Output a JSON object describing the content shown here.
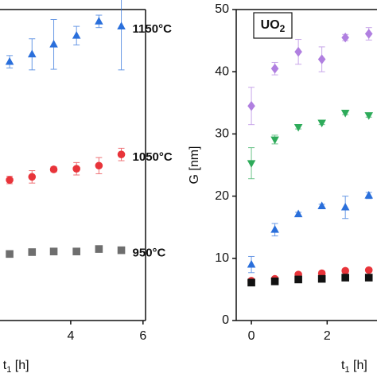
{
  "chart_data": [
    {
      "type": "scatter",
      "x": [
        2.31,
        2.93,
        3.53,
        4.16,
        4.78,
        5.4
      ],
      "xlim": [
        2,
        6.07
      ],
      "xticks": [
        4,
        6
      ],
      "ylim": [
        0,
        50
      ],
      "xlabel": {
        "text": "t",
        "sub": "1",
        "unit": " [h]"
      },
      "series": [
        {
          "name": "1150°C",
          "color": "#2a6fdb",
          "marker": "triangle",
          "values": [
            41.6,
            42.8,
            44.4,
            45.8,
            48.1,
            47.3
          ],
          "errors": [
            1,
            2.5,
            4,
            1.5,
            1,
            7
          ]
        },
        {
          "name": "1050°C",
          "color": "#e8343a",
          "marker": "circle",
          "values": [
            22.6,
            23.1,
            24.3,
            24.4,
            24.9,
            26.7
          ],
          "errors": [
            0.6,
            1,
            0.4,
            1,
            1.3,
            1
          ]
        },
        {
          "name": "950°C",
          "color": "#6e6e6e",
          "marker": "square",
          "values": [
            10.7,
            11.0,
            11.1,
            11.1,
            11.5,
            11.3
          ],
          "errors": [
            0,
            0,
            0,
            0,
            0,
            0
          ]
        }
      ]
    },
    {
      "type": "scatter",
      "x": [
        0,
        0.62,
        1.24,
        1.86,
        2.48,
        3.1
      ],
      "xlim": [
        -0.4,
        3.4
      ],
      "xticks": [
        0,
        2
      ],
      "ylim": [
        0,
        50
      ],
      "yticks": [
        0,
        10,
        20,
        30,
        40,
        50
      ],
      "xlabel": {
        "text": "t",
        "sub": "1",
        "unit": " [h]"
      },
      "ylabel": "G [nm]",
      "annotation": {
        "text": "UO",
        "sub": "2"
      },
      "series": [
        {
          "color": "#b07fe0",
          "marker": "diamond",
          "values": [
            34.5,
            40.5,
            43.2,
            42.0,
            45.5,
            46.1
          ],
          "errors": [
            3,
            1,
            2,
            2,
            0.5,
            1
          ]
        },
        {
          "color": "#2eab5a",
          "marker": "triangle-down",
          "values": [
            25.3,
            29.1,
            31.1,
            31.8,
            33.4,
            33.0
          ],
          "errors": [
            2.5,
            0.7,
            0.3,
            0.3,
            0.3,
            0.3
          ]
        },
        {
          "color": "#2a6fdb",
          "marker": "triangle",
          "values": [
            9.0,
            14.6,
            17.1,
            18.4,
            18.2,
            20.1
          ],
          "errors": [
            1.3,
            1,
            0.3,
            0.3,
            1.8,
            0.5
          ]
        },
        {
          "color": "#e8343a",
          "marker": "circle",
          "values": [
            6.4,
            6.7,
            7.4,
            7.6,
            8.0,
            8.1
          ],
          "errors": [
            0.3,
            0.3,
            0.3,
            0.3,
            0.3,
            0.3
          ]
        },
        {
          "color": "#111111",
          "marker": "square",
          "values": [
            6.1,
            6.3,
            6.6,
            6.7,
            6.9,
            6.9
          ],
          "errors": [
            0,
            0,
            0,
            0,
            0,
            0
          ]
        }
      ]
    }
  ]
}
